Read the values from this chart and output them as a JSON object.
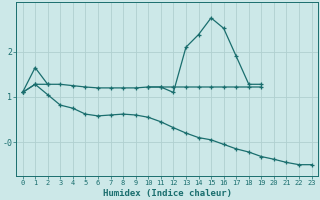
{
  "xlabel": "Humidex (Indice chaleur)",
  "bg_color": "#cce8e8",
  "grid_color": "#b0d0d0",
  "line_color": "#1a6e6e",
  "xlim": [
    -0.5,
    23.5
  ],
  "ylim": [
    -0.75,
    3.1
  ],
  "yticks": [
    0,
    1,
    2
  ],
  "ytick_labels": [
    "-0",
    "1",
    "2"
  ],
  "xticks": [
    0,
    1,
    2,
    3,
    4,
    5,
    6,
    7,
    8,
    9,
    10,
    11,
    12,
    13,
    14,
    15,
    16,
    17,
    18,
    19,
    20,
    21,
    22,
    23
  ],
  "series1_y": [
    1.1,
    1.65,
    1.28,
    null,
    null,
    null,
    null,
    null,
    null,
    null,
    1.22,
    1.22,
    1.1,
    2.1,
    2.38,
    2.75,
    2.52,
    1.9,
    1.28,
    1.28,
    null,
    null,
    null,
    null
  ],
  "series2_y": [
    1.1,
    1.28,
    1.28,
    1.28,
    1.25,
    1.22,
    1.2,
    1.2,
    1.2,
    1.2,
    1.22,
    1.22,
    1.22,
    1.22,
    1.22,
    1.22,
    1.22,
    1.22,
    1.22,
    1.22,
    null,
    null,
    null,
    null
  ],
  "series3_y": [
    1.1,
    1.28,
    1.05,
    0.82,
    0.75,
    0.62,
    0.58,
    0.6,
    0.62,
    0.6,
    0.55,
    0.45,
    0.32,
    0.2,
    0.1,
    0.05,
    -0.05,
    -0.15,
    -0.22,
    -0.32,
    -0.38,
    -0.45,
    -0.5,
    -0.5
  ]
}
